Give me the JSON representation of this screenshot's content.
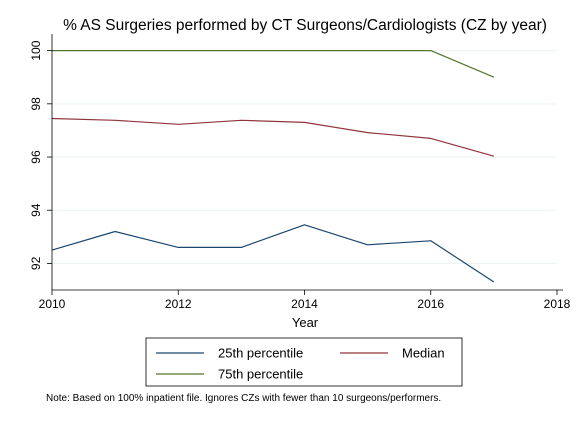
{
  "chart_data": {
    "type": "line",
    "title": "% AS Surgeries performed by CT Surgeons/Cardiologists (CZ by year)",
    "xlabel": "Year",
    "ylabel": "",
    "xlim": [
      2010,
      2018
    ],
    "ylim": [
      91,
      100.4
    ],
    "xticks": [
      "2010",
      "2012",
      "2014",
      "2016",
      "2018"
    ],
    "yticks": [
      "92",
      "94",
      "96",
      "98",
      "100"
    ],
    "grid": "horizontal",
    "legend_position": "bottom",
    "x": [
      2010,
      2011,
      2012,
      2013,
      2014,
      2015,
      2016,
      2017
    ],
    "series": [
      {
        "name": "25th percentile",
        "color": "#1a476f",
        "values": [
          92.5,
          93.2,
          92.6,
          92.6,
          93.45,
          92.7,
          92.85,
          91.3
        ]
      },
      {
        "name": "Median",
        "color": "#90353b",
        "values": [
          97.45,
          97.38,
          97.23,
          97.38,
          97.3,
          96.92,
          96.7,
          96.03
        ]
      },
      {
        "name": "75th percentile",
        "color": "#55752f",
        "values": [
          100,
          100,
          100,
          100,
          100,
          100,
          100,
          99
        ]
      }
    ],
    "note": "Note: Based on 100% inpatient file. Ignores CZs with fewer than 10 surgeons/performers."
  }
}
